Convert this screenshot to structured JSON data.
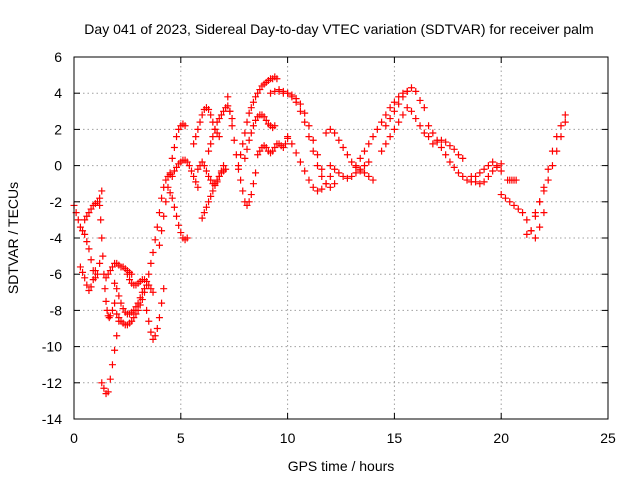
{
  "chart_data": {
    "type": "scatter",
    "title": "Day 041 of 2023, Sidereal Day-to-day VTEC variation (SDTVAR) for receiver palm",
    "xlabel": "GPS time / hours",
    "ylabel": "SDTVAR / TECUs",
    "xlim": [
      0,
      25
    ],
    "ylim": [
      -14,
      6
    ],
    "xticks": [
      0,
      5,
      10,
      15,
      20,
      25
    ],
    "yticks": [
      -14,
      -12,
      -10,
      -8,
      -6,
      -4,
      -2,
      0,
      2,
      4,
      6
    ],
    "grid": true,
    "marker": "+",
    "color": "#ff0000",
    "series": [
      {
        "name": "t1",
        "x": [
          0.0,
          0.1,
          0.2,
          0.3,
          0.4,
          0.5,
          0.6,
          0.7,
          0.8,
          0.9,
          1.0,
          1.1,
          1.2
        ],
        "y": [
          -2.2,
          -2.6,
          -3.0,
          -3.4,
          -3.6,
          -3.8,
          -4.2,
          -4.6,
          -5.2,
          -5.8,
          -6.2,
          -6.0,
          -5.4
        ]
      },
      {
        "name": "t2",
        "x": [
          0.3,
          0.4,
          0.5,
          0.6,
          0.7,
          0.8,
          0.9,
          1.0
        ],
        "y": [
          -5.6,
          -5.9,
          -6.2,
          -6.6,
          -6.9,
          -6.7,
          -6.3,
          -5.8
        ]
      },
      {
        "name": "t3",
        "x": [
          0.5,
          0.6,
          0.7,
          0.8,
          0.9,
          1.0,
          1.1,
          1.2,
          1.3
        ],
        "y": [
          -3.0,
          -2.8,
          -2.6,
          -2.4,
          -2.2,
          -2.1,
          -2.0,
          -1.8,
          -1.4
        ]
      },
      {
        "name": "t4",
        "x": [
          1.2,
          1.25,
          1.3,
          1.35,
          1.4,
          1.45,
          1.5,
          1.55,
          1.6,
          1.65,
          1.7,
          1.8,
          1.9
        ],
        "y": [
          -2.2,
          -3.0,
          -4.0,
          -5.0,
          -6.0,
          -6.8,
          -7.5,
          -8.0,
          -8.3,
          -8.4,
          -8.3,
          -8.0,
          -7.6
        ]
      },
      {
        "name": "t5",
        "x": [
          1.3,
          1.4,
          1.5,
          1.6,
          1.7,
          1.8,
          1.9,
          2.0,
          2.1
        ],
        "y": [
          -12.0,
          -12.3,
          -12.6,
          -12.5,
          -11.8,
          -11.0,
          -10.2,
          -9.4,
          -8.6
        ]
      },
      {
        "name": "t6",
        "x": [
          1.5,
          1.6,
          1.7,
          1.8,
          1.9,
          2.0,
          2.1,
          2.2,
          2.3,
          2.4,
          2.5,
          2.6,
          2.7
        ],
        "y": [
          -6.2,
          -6.0,
          -5.8,
          -5.6,
          -5.4,
          -5.4,
          -5.5,
          -5.6,
          -5.6,
          -5.7,
          -5.8,
          -5.9,
          -6.0
        ]
      },
      {
        "name": "t7",
        "x": [
          1.9,
          2.0,
          2.1,
          2.2,
          2.3,
          2.4,
          2.5,
          2.6,
          2.7,
          2.8,
          2.9,
          3.0,
          3.1,
          3.2,
          3.3
        ],
        "y": [
          -6.5,
          -6.8,
          -7.2,
          -7.6,
          -7.9,
          -8.1,
          -8.2,
          -8.2,
          -8.1,
          -8.0,
          -7.8,
          -7.6,
          -7.3,
          -7.0,
          -6.8
        ]
      },
      {
        "name": "t8",
        "x": [
          2.0,
          2.1,
          2.2,
          2.3,
          2.4,
          2.5,
          2.6,
          2.7,
          2.8,
          2.9,
          3.0,
          3.1,
          3.2,
          3.3
        ],
        "y": [
          -8.2,
          -8.4,
          -8.6,
          -8.7,
          -8.8,
          -8.8,
          -8.7,
          -8.6,
          -8.4,
          -8.2,
          -8.0,
          -7.7,
          -7.4,
          -7.0
        ]
      },
      {
        "name": "t9",
        "x": [
          2.5,
          2.6,
          2.7,
          2.8,
          2.9,
          3.0,
          3.1,
          3.2,
          3.3,
          3.4,
          3.5,
          3.6,
          3.7
        ],
        "y": [
          -6.0,
          -6.3,
          -6.5,
          -6.6,
          -6.6,
          -6.5,
          -6.4,
          -6.3,
          -6.3,
          -6.4,
          -6.6,
          -6.8,
          -7.0
        ]
      },
      {
        "name": "t10",
        "x": [
          3.4,
          3.5,
          3.6,
          3.7,
          3.8,
          3.9,
          4.0,
          4.1,
          4.2
        ],
        "y": [
          -8.0,
          -8.6,
          -9.2,
          -9.6,
          -9.4,
          -9.0,
          -8.4,
          -7.6,
          -6.8
        ]
      },
      {
        "name": "t11",
        "x": [
          3.4,
          3.5,
          3.6,
          3.7,
          3.8,
          3.9,
          4.0,
          4.1,
          4.2,
          4.3,
          4.4,
          4.5,
          4.6
        ],
        "y": [
          -6.6,
          -6.0,
          -5.4,
          -4.8,
          -4.1,
          -3.4,
          -2.6,
          -1.8,
          -1.2,
          -0.8,
          -0.6,
          -0.5,
          -0.6
        ]
      },
      {
        "name": "t12",
        "x": [
          4.0,
          4.1,
          4.2,
          4.3,
          4.4,
          4.5,
          4.6,
          4.7,
          4.8,
          4.9,
          5.0,
          5.1,
          5.2
        ],
        "y": [
          -4.4,
          -3.6,
          -2.8,
          -2.0,
          -1.2,
          -0.4,
          0.4,
          1.0,
          1.6,
          2.0,
          2.2,
          2.3,
          2.2
        ]
      },
      {
        "name": "t13",
        "x": [
          4.5,
          4.6,
          4.7,
          4.8,
          4.9,
          5.0,
          5.1,
          5.2,
          5.3
        ],
        "y": [
          -1.5,
          -1.8,
          -2.3,
          -2.8,
          -3.3,
          -3.7,
          -4.0,
          -4.1,
          -4.0
        ]
      },
      {
        "name": "t14",
        "x": [
          4.7,
          4.8,
          4.9,
          5.0,
          5.1,
          5.2,
          5.3,
          5.4,
          5.5,
          5.6,
          5.7,
          5.8
        ],
        "y": [
          -0.3,
          -0.1,
          0.1,
          0.2,
          0.3,
          0.3,
          0.2,
          0.0,
          -0.3,
          -0.6,
          -0.9,
          -1.2
        ]
      },
      {
        "name": "t15",
        "x": [
          5.8,
          5.9,
          6.0,
          6.1,
          6.2,
          6.3,
          6.4,
          6.5,
          6.6,
          6.7,
          6.8,
          6.9,
          7.0
        ],
        "y": [
          -0.2,
          0.0,
          0.2,
          0.0,
          -0.3,
          -0.6,
          -0.8,
          -1.0,
          -1.0,
          -0.9,
          -0.6,
          -0.3,
          0.0
        ]
      },
      {
        "name": "t16",
        "x": [
          5.6,
          5.7,
          5.8,
          5.9,
          6.0,
          6.1,
          6.2,
          6.3,
          6.4,
          6.5,
          6.6,
          6.7,
          6.8
        ],
        "y": [
          1.2,
          1.6,
          2.0,
          2.4,
          2.8,
          3.1,
          3.2,
          3.1,
          2.8,
          2.4,
          2.0,
          1.8,
          1.6
        ]
      },
      {
        "name": "t17",
        "x": [
          6.0,
          6.1,
          6.2,
          6.3,
          6.4,
          6.5,
          6.6,
          6.7,
          6.8,
          6.9,
          7.0,
          7.1
        ],
        "y": [
          -2.9,
          -2.6,
          -2.3,
          -2.0,
          -1.7,
          -1.4,
          -1.1,
          -0.8,
          -0.6,
          -0.4,
          -0.3,
          -0.2
        ]
      },
      {
        "name": "t18",
        "x": [
          6.3,
          6.4,
          6.5,
          6.6,
          6.7,
          6.8,
          6.9,
          7.0,
          7.1,
          7.2,
          7.3,
          7.4
        ],
        "y": [
          0.8,
          1.2,
          1.6,
          2.0,
          2.4,
          2.6,
          2.8,
          3.0,
          3.2,
          3.3,
          3.0,
          2.6
        ]
      },
      {
        "name": "t19",
        "x": [
          7.2,
          7.3,
          7.4,
          7.5,
          7.6,
          7.7,
          7.8,
          7.9,
          8.0,
          8.1,
          8.2,
          8.3,
          8.4,
          8.5
        ],
        "y": [
          3.8,
          3.0,
          2.2,
          1.4,
          0.6,
          -0.2,
          -0.8,
          -1.4,
          -2.0,
          -2.2,
          -2.0,
          -1.6,
          -1.0,
          -0.4
        ]
      },
      {
        "name": "t20",
        "x": [
          7.7,
          7.8,
          7.9,
          8.0,
          8.1,
          8.2,
          8.3,
          8.4,
          8.5,
          8.6,
          8.7,
          8.8,
          8.9,
          9.0,
          9.1,
          9.2,
          9.3,
          9.4,
          9.5
        ],
        "y": [
          0.0,
          0.6,
          1.2,
          1.8,
          2.4,
          2.9,
          3.2,
          3.5,
          3.8,
          4.0,
          4.2,
          4.4,
          4.5,
          4.6,
          4.7,
          4.8,
          4.8,
          4.9,
          4.8
        ]
      },
      {
        "name": "t21",
        "x": [
          8.0,
          8.1,
          8.2,
          8.3,
          8.4,
          8.5,
          8.6,
          8.7,
          8.8,
          8.9,
          9.0,
          9.1,
          9.2,
          9.3,
          9.4
        ],
        "y": [
          0.4,
          0.9,
          1.4,
          1.8,
          2.2,
          2.5,
          2.7,
          2.8,
          2.8,
          2.7,
          2.5,
          2.3,
          2.2,
          2.1,
          2.2
        ]
      },
      {
        "name": "t22",
        "x": [
          8.6,
          8.7,
          8.8,
          8.9,
          9.0,
          9.1,
          9.2,
          9.3,
          9.4,
          9.5,
          9.6,
          9.7,
          9.8,
          9.9,
          10.0
        ],
        "y": [
          0.6,
          0.8,
          1.0,
          1.1,
          1.0,
          0.8,
          0.7,
          0.8,
          1.0,
          1.2,
          1.2,
          1.1,
          1.0,
          1.2,
          1.5
        ]
      },
      {
        "name": "t23",
        "x": [
          9.2,
          9.4,
          9.6,
          9.8,
          10.0,
          10.2,
          10.4,
          10.6,
          10.8,
          11.0,
          11.2,
          11.4,
          11.6
        ],
        "y": [
          4.0,
          4.1,
          4.1,
          4.0,
          4.0,
          3.9,
          3.7,
          3.4,
          2.9,
          2.2,
          1.4,
          0.6,
          -0.2
        ]
      },
      {
        "name": "t24",
        "x": [
          9.6,
          9.8,
          10.0,
          10.2,
          10.4,
          10.6,
          10.8,
          11.0,
          11.2,
          11.4,
          11.6,
          11.8,
          12.0,
          12.2
        ],
        "y": [
          4.2,
          4.1,
          4.0,
          3.8,
          3.5,
          3.0,
          2.4,
          1.6,
          0.8,
          0.0,
          -0.6,
          -1.0,
          -1.2,
          -1.0
        ]
      },
      {
        "name": "t25",
        "x": [
          10.0,
          10.2,
          10.4,
          10.6,
          10.8,
          11.0,
          11.2,
          11.4,
          11.6,
          11.8,
          12.0
        ],
        "y": [
          1.6,
          1.2,
          0.7,
          0.2,
          -0.3,
          -0.8,
          -1.2,
          -1.4,
          -1.3,
          -1.0,
          -0.6
        ]
      },
      {
        "name": "t26",
        "x": [
          11.8,
          12.0,
          12.2,
          12.4,
          12.6,
          12.8,
          13.0,
          13.2,
          13.4,
          13.6,
          13.8,
          14.0
        ],
        "y": [
          1.8,
          2.0,
          1.8,
          1.4,
          1.0,
          0.6,
          0.2,
          -0.1,
          -0.3,
          -0.4,
          -0.6,
          -0.8
        ]
      },
      {
        "name": "t27",
        "x": [
          12.0,
          12.2,
          12.4,
          12.6,
          12.8,
          13.0,
          13.2,
          13.4,
          13.6,
          13.8
        ],
        "y": [
          0.0,
          -0.2,
          -0.4,
          -0.6,
          -0.7,
          -0.6,
          -0.4,
          -0.2,
          0.0,
          0.2
        ]
      },
      {
        "name": "t28",
        "x": [
          13.2,
          13.4,
          13.6,
          13.8,
          14.0,
          14.2,
          14.4,
          14.6,
          14.8,
          15.0,
          15.2,
          15.4,
          15.6
        ],
        "y": [
          0.0,
          0.4,
          0.8,
          1.2,
          1.6,
          2.0,
          2.4,
          2.8,
          3.2,
          3.5,
          3.8,
          4.0,
          4.1
        ]
      },
      {
        "name": "t29",
        "x": [
          14.4,
          14.6,
          14.8,
          15.0,
          15.2,
          15.4,
          15.6,
          15.8,
          16.0,
          16.2,
          16.4,
          16.6
        ],
        "y": [
          0.8,
          1.2,
          1.6,
          2.0,
          2.4,
          2.8,
          3.2,
          3.0,
          2.6,
          2.2,
          1.8,
          1.6
        ]
      },
      {
        "name": "t30",
        "x": [
          14.6,
          14.8,
          15.0,
          15.2,
          15.4,
          15.6,
          15.8,
          16.0,
          16.2,
          16.4
        ],
        "y": [
          2.2,
          2.6,
          3.0,
          3.4,
          3.8,
          4.1,
          4.3,
          4.1,
          3.6,
          3.2
        ]
      },
      {
        "name": "t31",
        "x": [
          16.6,
          16.8,
          17.0,
          17.2,
          17.4,
          17.6,
          17.8,
          18.0,
          18.2,
          18.4,
          18.6
        ],
        "y": [
          2.2,
          1.8,
          1.4,
          1.0,
          0.6,
          0.2,
          -0.1,
          -0.4,
          -0.6,
          -0.8,
          -0.9
        ]
      },
      {
        "name": "t32",
        "x": [
          16.8,
          17.0,
          17.2,
          17.4,
          17.6,
          17.8,
          18.0,
          18.2
        ],
        "y": [
          1.2,
          1.3,
          1.4,
          1.3,
          1.1,
          0.9,
          0.6,
          0.4
        ]
      },
      {
        "name": "t33",
        "x": [
          18.8,
          19.0,
          19.2,
          19.4,
          19.6,
          19.8,
          20.0
        ],
        "y": [
          -0.6,
          -0.4,
          -0.2,
          0.0,
          0.2,
          0.0,
          -0.3
        ]
      },
      {
        "name": "t34",
        "x": [
          18.6,
          18.8,
          19.0,
          19.2,
          19.4,
          19.6,
          19.8,
          20.0
        ],
        "y": [
          -0.6,
          -0.9,
          -1.0,
          -0.9,
          -0.6,
          -0.3,
          -0.1,
          0.1
        ]
      },
      {
        "name": "t35",
        "x": [
          20.0,
          20.2,
          20.4,
          20.6,
          20.8,
          21.0,
          21.2,
          21.4,
          21.6,
          21.8,
          22.0
        ],
        "y": [
          -1.6,
          -1.8,
          -2.0,
          -2.2,
          -2.4,
          -2.6,
          -3.0,
          -3.6,
          -4.0,
          -3.4,
          -2.6
        ]
      },
      {
        "name": "t36",
        "x": [
          20.3,
          20.4,
          20.5,
          20.6,
          20.7
        ],
        "y": [
          -0.8,
          -0.8,
          -0.8,
          -0.8,
          -0.8
        ]
      },
      {
        "name": "t37",
        "x": [
          21.2,
          21.4,
          21.6,
          21.8,
          22.0,
          22.2,
          22.4,
          22.6,
          22.8,
          23.0
        ],
        "y": [
          -3.8,
          -3.6,
          -2.8,
          -2.0,
          -1.2,
          -0.2,
          0.8,
          1.6,
          2.2,
          2.8
        ]
      },
      {
        "name": "t38",
        "x": [
          21.6,
          21.8,
          22.0,
          22.2,
          22.4,
          22.6,
          22.8,
          23.0
        ],
        "y": [
          -2.6,
          -2.0,
          -1.4,
          -0.8,
          0.0,
          0.8,
          1.6,
          2.4
        ]
      }
    ]
  }
}
